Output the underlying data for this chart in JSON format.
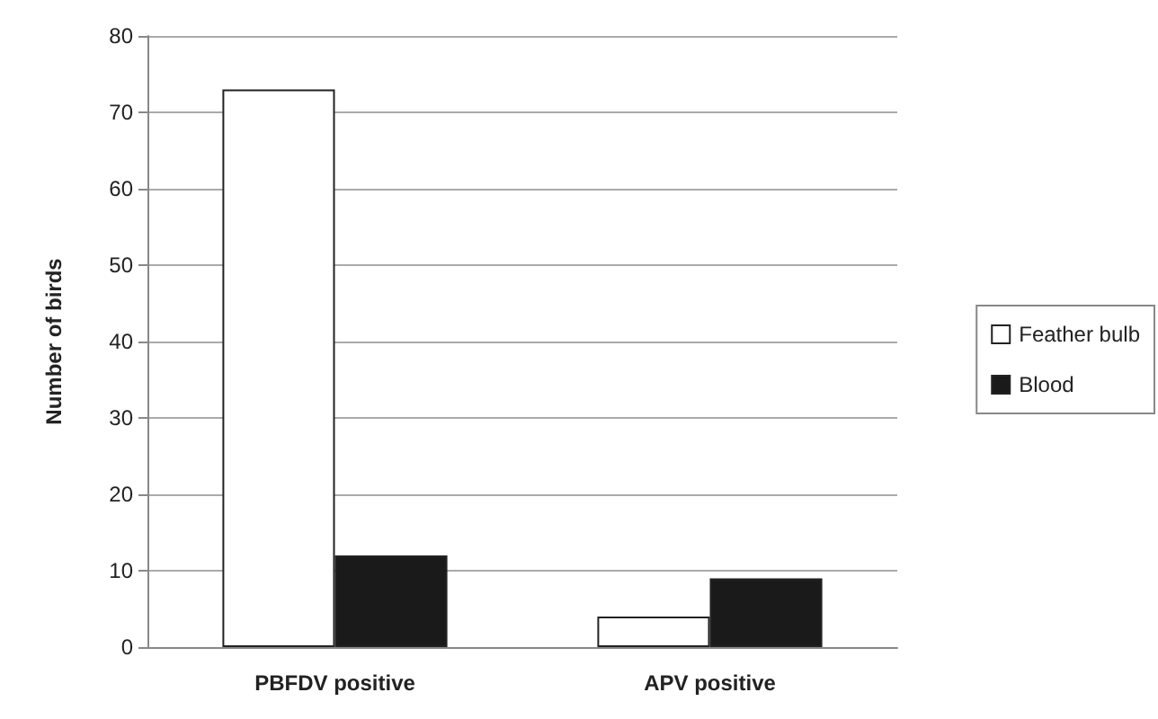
{
  "chart_data": {
    "type": "bar",
    "ylabel": "Number of birds",
    "categories": [
      "PBFDV positive",
      "APV positive"
    ],
    "series": [
      {
        "name": "Feather bulb",
        "color": "#ffffff",
        "values": [
          73,
          4
        ]
      },
      {
        "name": "Blood",
        "color": "#1a1a1a",
        "values": [
          12,
          9
        ]
      }
    ],
    "ylim": [
      0,
      80
    ],
    "yticks": [
      0,
      10,
      20,
      30,
      40,
      50,
      60,
      70,
      80
    ],
    "grid": "y",
    "legend": "right"
  }
}
